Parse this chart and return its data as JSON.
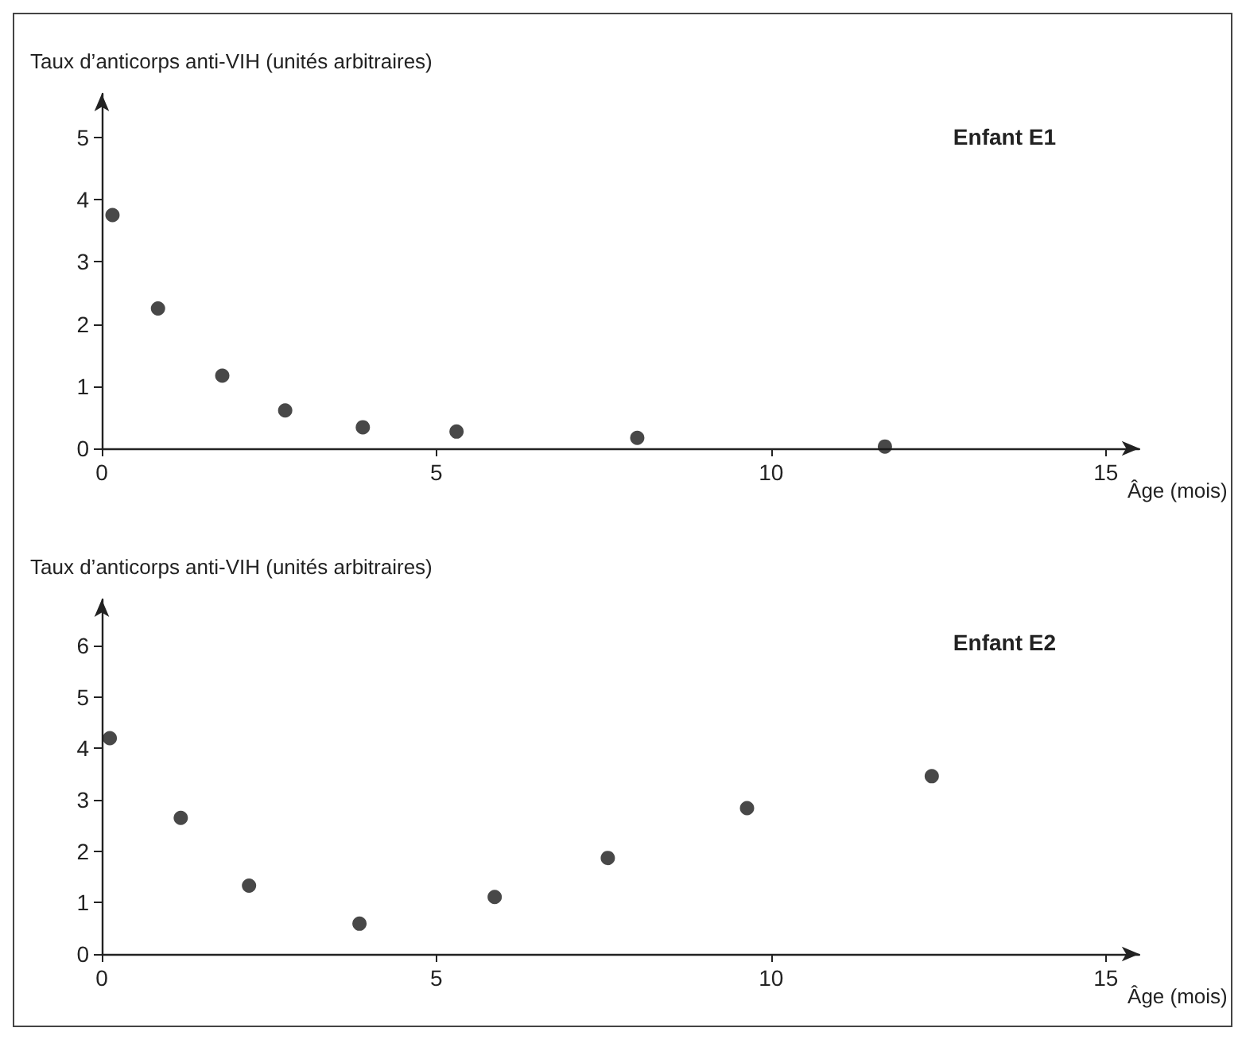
{
  "chart_data": [
    {
      "type": "scatter",
      "xlabel": "Âge (mois)",
      "ylabel": "Taux d’anticorps anti-VIH (unités arbitraires)",
      "annotations": [
        "Enfant E1"
      ],
      "x": [
        0.16,
        0.84,
        1.8,
        2.74,
        3.9,
        5.3,
        8.0,
        11.7
      ],
      "series": [
        {
          "color": "#1a1a1a",
          "values": [
            3.75,
            2.25,
            1.17,
            0.61,
            0.34,
            0.27,
            0.17,
            0.03
          ]
        }
      ],
      "xlim": [
        0,
        15.5
      ],
      "xticks": [
        0,
        5,
        10,
        15
      ],
      "ylim": [
        0,
        5.7
      ],
      "yticks": [
        0,
        1,
        2,
        3,
        4,
        5
      ],
      "grid": false,
      "marker": "circle"
    },
    {
      "type": "scatter",
      "xlabel": "Âge (mois)",
      "ylabel": "Taux d’anticorps anti-VIH (unités arbitraires)",
      "annotations": [
        "Enfant E2"
      ],
      "x": [
        0.12,
        1.18,
        2.2,
        3.85,
        5.87,
        7.56,
        9.64,
        12.4
      ],
      "series": [
        {
          "color": "#1a1a1a",
          "values": [
            4.2,
            2.65,
            1.33,
            0.59,
            1.11,
            1.87,
            2.84,
            3.46
          ]
        }
      ],
      "xlim": [
        0,
        15.5
      ],
      "xticks": [
        0,
        5,
        10,
        15
      ],
      "ylim": [
        0,
        6.9
      ],
      "yticks": [
        0,
        1,
        2,
        3,
        4,
        5,
        6
      ],
      "grid": false,
      "marker": "circle"
    }
  ]
}
